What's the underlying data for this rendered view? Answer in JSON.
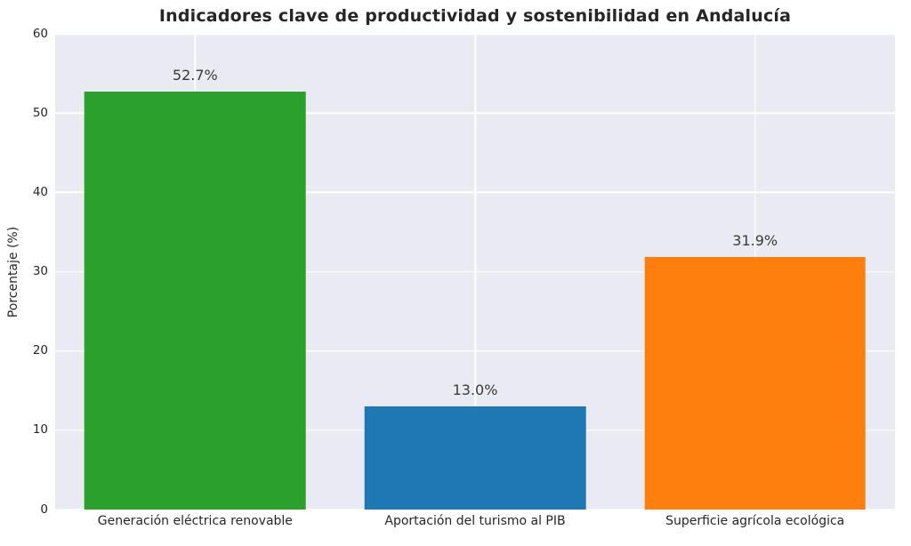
{
  "chart_data": {
    "type": "bar",
    "title": "Indicadores clave de productividad y sostenibilidad en Andalucía",
    "xlabel": "",
    "ylabel": "Porcentaje (%)",
    "categories": [
      "Generación eléctrica renovable",
      "Aportación del turismo al PIB",
      "Superficie agrícola ecológica"
    ],
    "values": [
      52.7,
      13.0,
      31.9
    ],
    "value_labels": [
      "52.7%",
      "13.0%",
      "31.9%"
    ],
    "bar_colors": [
      "#2ca02c",
      "#1f77b4",
      "#ff7f0e"
    ],
    "ylim": [
      0,
      60
    ],
    "yticks": [
      0,
      10,
      20,
      30,
      40,
      50,
      60
    ],
    "grid": true,
    "legend_position": "none",
    "figure_background": "#ffffff",
    "plot_background": "#eaeaf2",
    "grid_color": "#ffffff",
    "text_color": "#262626"
  }
}
